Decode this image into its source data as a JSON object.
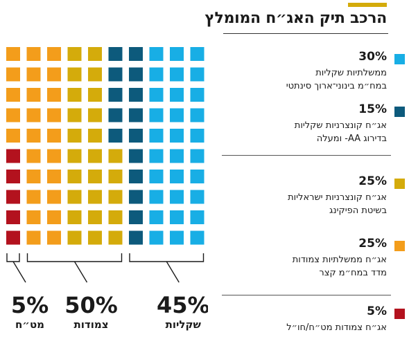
{
  "chart_data": {
    "type": "waffle",
    "title": "הרכב תיק האג״ח המומלץ",
    "unit": "%",
    "total_cells": 100,
    "grid": {
      "columns": 10,
      "rows": 10
    },
    "series": [
      {
        "name": "ממשלתיות שקליות",
        "name_line2": "במח״מ בינוני־ארוך סינתטי",
        "value": 30,
        "color": "#18aee5"
      },
      {
        "name": "אג״ח קונצרניות שקליות",
        "name_line2": "בדירוג AA- ומעלה",
        "value": 15,
        "color": "#0d5a7c"
      },
      {
        "name": "אג״ח קונצרניות ישראליות",
        "name_line2": "בשיטת הפיקינג",
        "value": 25,
        "color": "#d4ab0b"
      },
      {
        "name": "אג״ח ממשלתיות צמודות",
        "name_line2": "מדד במח״מ קצר",
        "value": 25,
        "color": "#f39d1b"
      },
      {
        "name": "אג״ח צמודות מט״ח/חו״ל",
        "name_line2": "",
        "value": 5,
        "color": "#b3121e"
      }
    ],
    "groups": [
      {
        "label": "שקליות",
        "value": 45,
        "value_text": "45%",
        "columns": [
          6,
          9
        ]
      },
      {
        "label": "צמודות",
        "value": 50,
        "value_text": "50%",
        "columns": [
          1,
          5
        ]
      },
      {
        "label": "מט״ח",
        "value": 5,
        "value_text": "5%",
        "columns": [
          0,
          0
        ]
      }
    ]
  }
}
